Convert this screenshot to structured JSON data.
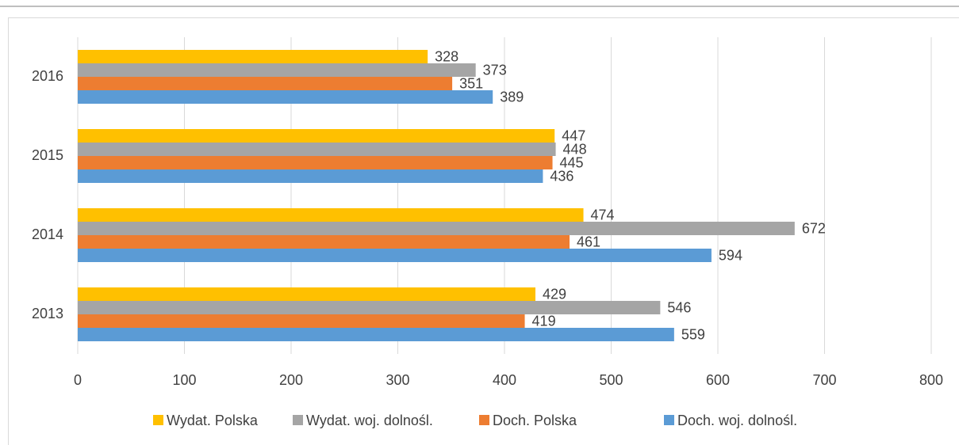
{
  "chart_data": {
    "type": "bar",
    "orientation": "horizontal",
    "categories": [
      "2013",
      "2014",
      "2015",
      "2016"
    ],
    "series": [
      {
        "name": "Wydat. Polska",
        "color": "#FFC000",
        "values": [
          429,
          474,
          447,
          328
        ]
      },
      {
        "name": "Wydat. woj. dolnośl.",
        "color": "#A5A5A5",
        "values": [
          546,
          672,
          448,
          373
        ]
      },
      {
        "name": "Doch. Polska",
        "color": "#ED7D31",
        "values": [
          419,
          461,
          445,
          351
        ]
      },
      {
        "name": "Doch. woj. dolnośl.",
        "color": "#5B9BD5",
        "values": [
          559,
          594,
          436,
          389
        ]
      }
    ],
    "xlim": [
      0,
      800
    ],
    "xticks": [
      0,
      100,
      200,
      300,
      400,
      500,
      600,
      700,
      800
    ],
    "grid": true,
    "legend": "bottom"
  }
}
